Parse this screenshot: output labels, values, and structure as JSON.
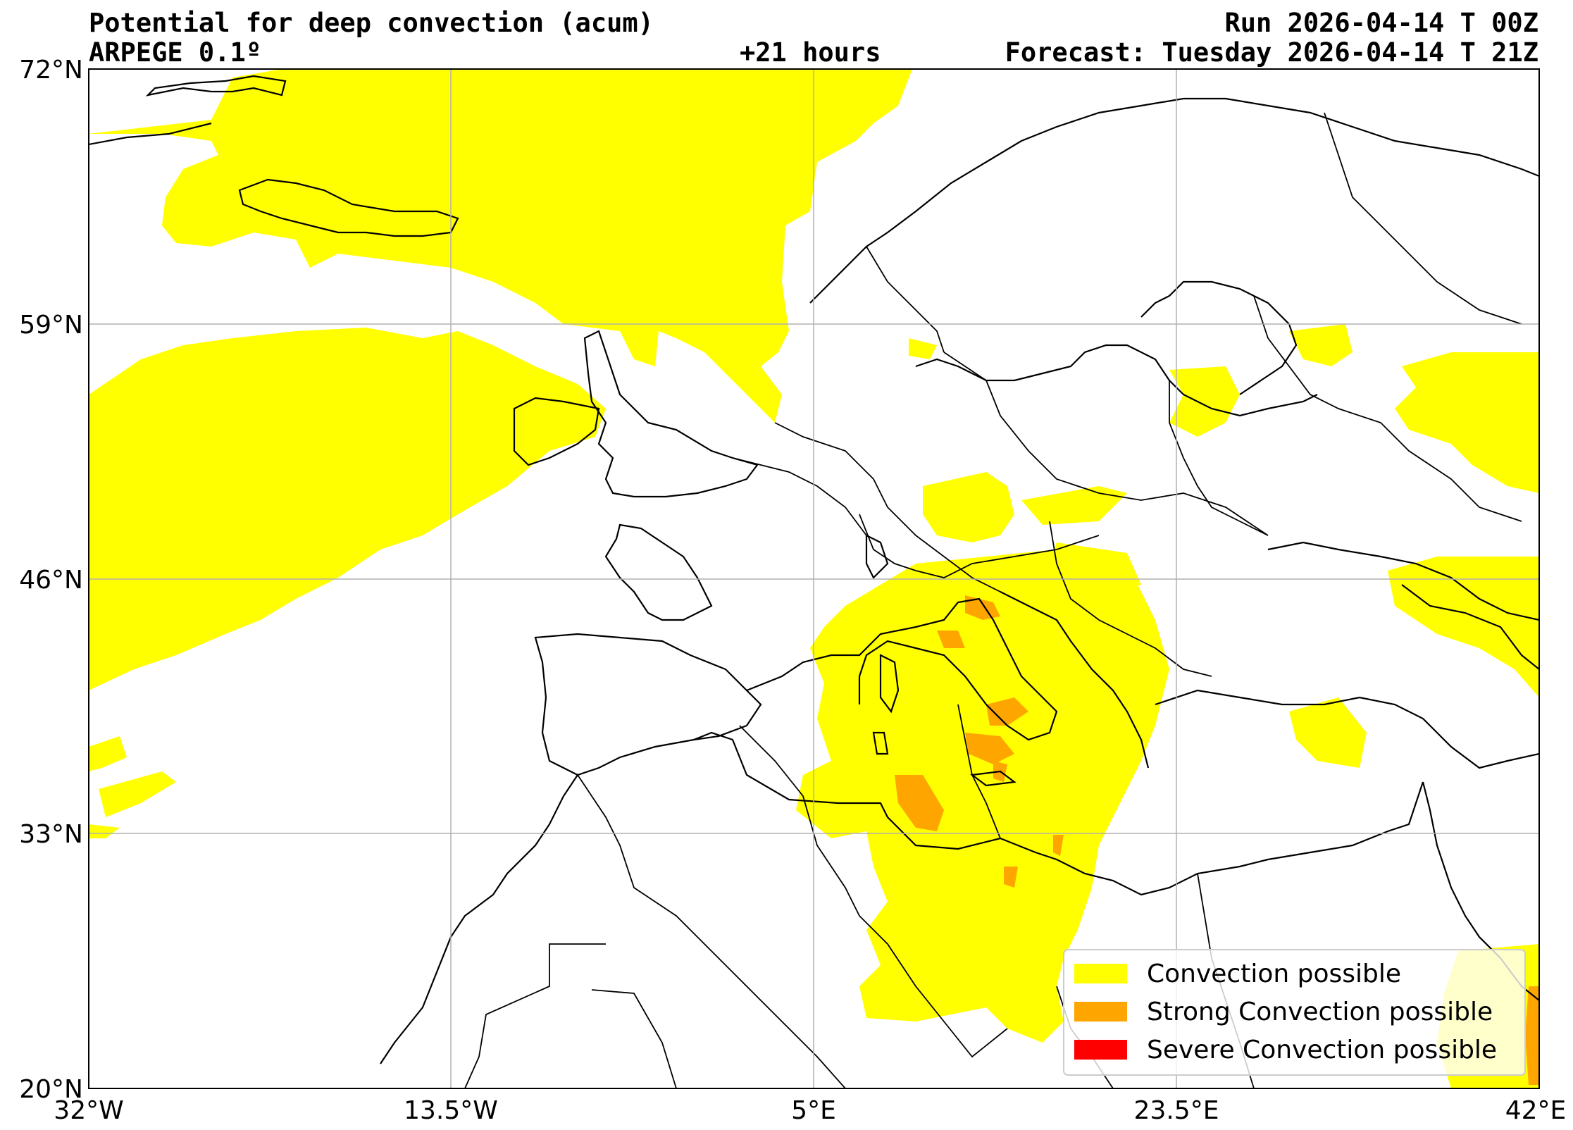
{
  "header": {
    "title": "Potential for deep convection (acum)",
    "model": "ARPEGE 0.1º",
    "lead": "+21 hours",
    "run": "Run 2026-04-14 T 00Z",
    "forecast": "Forecast: Tuesday 2026-04-14 T 21Z"
  },
  "axes": {
    "lon_ticks": [
      "32°W",
      "13.5°W",
      "5°E",
      "23.5°E",
      "42°E"
    ],
    "lat_ticks": [
      "72°N",
      "59°N",
      "46°N",
      "33°N",
      "20°N"
    ],
    "extent": {
      "lon_min": -32,
      "lon_max": 42,
      "lat_min": 20,
      "lat_max": 72
    }
  },
  "legend": {
    "placement": "bottom-right",
    "items": [
      {
        "label": "Convection possible",
        "color": "#ffff00"
      },
      {
        "label": "Strong Convection possible",
        "color": "#ffa500"
      },
      {
        "label": "Severe Convection possible",
        "color": "#ff0000"
      }
    ]
  },
  "colors": {
    "convection": "#ffff00",
    "strong": "#ffa500",
    "severe": "#ff0000",
    "grid": "#b0b0b0",
    "coast": "#000000"
  }
}
